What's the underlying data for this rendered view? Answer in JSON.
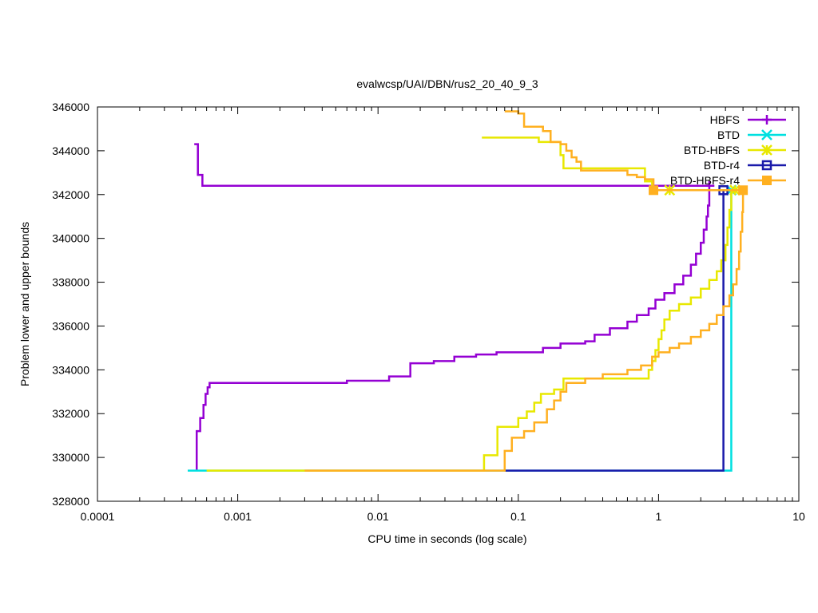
{
  "chart_data": {
    "type": "line",
    "title": "evalwcsp/UAI/DBN/rus2_20_40_9_3",
    "xlabel": "CPU time in seconds (log scale)",
    "ylabel": "Problem lower and upper bounds",
    "x_scale": "log",
    "xlim": [
      0.0001,
      10
    ],
    "ylim": [
      328000,
      346000
    ],
    "x_ticks": [
      0.0001,
      0.001,
      0.01,
      0.1,
      1,
      10
    ],
    "x_tick_labels": [
      "0.0001",
      "0.001",
      "0.01",
      "0.1",
      "1",
      "10"
    ],
    "y_ticks": [
      328000,
      330000,
      332000,
      334000,
      336000,
      338000,
      340000,
      342000,
      344000,
      346000
    ],
    "y_tick_labels": [
      "328000",
      "330000",
      "332000",
      "334000",
      "336000",
      "338000",
      "340000",
      "342000",
      "344000",
      "346000"
    ],
    "grid": false,
    "legend_position": "top-right",
    "series": [
      {
        "name": "HBFS",
        "color": "#9400d3",
        "marker": "plus",
        "upper": [
          [
            0.00049,
            344300
          ],
          [
            0.00052,
            344300
          ],
          [
            0.00052,
            342900
          ],
          [
            0.00056,
            342900
          ],
          [
            0.00056,
            342400
          ],
          [
            0.7,
            342400
          ],
          [
            2.3,
            342400
          ],
          [
            2.5,
            342400
          ]
        ],
        "lower": [
          [
            0.00051,
            329400
          ],
          [
            0.00051,
            331200
          ],
          [
            0.00054,
            331200
          ],
          [
            0.00054,
            331800
          ],
          [
            0.00057,
            331800
          ],
          [
            0.00057,
            332400
          ],
          [
            0.00059,
            332400
          ],
          [
            0.00059,
            332900
          ],
          [
            0.00061,
            332900
          ],
          [
            0.00061,
            333200
          ],
          [
            0.00063,
            333200
          ],
          [
            0.00063,
            333400
          ],
          [
            0.006,
            333400
          ],
          [
            0.006,
            333500
          ],
          [
            0.012,
            333500
          ],
          [
            0.012,
            333700
          ],
          [
            0.017,
            333700
          ],
          [
            0.017,
            334300
          ],
          [
            0.025,
            334300
          ],
          [
            0.025,
            334400
          ],
          [
            0.035,
            334400
          ],
          [
            0.035,
            334600
          ],
          [
            0.05,
            334600
          ],
          [
            0.05,
            334700
          ],
          [
            0.07,
            334700
          ],
          [
            0.07,
            334800
          ],
          [
            0.15,
            334800
          ],
          [
            0.15,
            335000
          ],
          [
            0.2,
            335000
          ],
          [
            0.2,
            335200
          ],
          [
            0.3,
            335200
          ],
          [
            0.3,
            335300
          ],
          [
            0.35,
            335300
          ],
          [
            0.35,
            335600
          ],
          [
            0.45,
            335600
          ],
          [
            0.45,
            335900
          ],
          [
            0.6,
            335900
          ],
          [
            0.6,
            336200
          ],
          [
            0.7,
            336200
          ],
          [
            0.7,
            336500
          ],
          [
            0.85,
            336500
          ],
          [
            0.85,
            336800
          ],
          [
            0.95,
            336800
          ],
          [
            0.95,
            337200
          ],
          [
            1.1,
            337200
          ],
          [
            1.1,
            337500
          ],
          [
            1.3,
            337500
          ],
          [
            1.3,
            337900
          ],
          [
            1.5,
            337900
          ],
          [
            1.5,
            338300
          ],
          [
            1.7,
            338300
          ],
          [
            1.7,
            338800
          ],
          [
            1.85,
            338800
          ],
          [
            1.85,
            339300
          ],
          [
            2.0,
            339300
          ],
          [
            2.0,
            339800
          ],
          [
            2.1,
            339800
          ],
          [
            2.1,
            340400
          ],
          [
            2.2,
            340400
          ],
          [
            2.2,
            341000
          ],
          [
            2.25,
            341000
          ],
          [
            2.25,
            341500
          ],
          [
            2.3,
            341500
          ],
          [
            2.3,
            342200
          ]
        ],
        "markers": [
          [
            2.3,
            342400
          ]
        ]
      },
      {
        "name": "BTD",
        "color": "#00e0e0",
        "marker": "x",
        "upper": [
          [
            3.1,
            342200
          ],
          [
            3.3,
            342200
          ]
        ],
        "lower": [
          [
            0.00044,
            329400
          ],
          [
            3.3,
            329400
          ],
          [
            3.3,
            342200
          ]
        ],
        "markers": [
          [
            3.3,
            342200
          ]
        ]
      },
      {
        "name": "BTD-HBFS",
        "color": "#e8e800",
        "marker": "star",
        "upper": [
          [
            0.055,
            344600
          ],
          [
            0.14,
            344600
          ],
          [
            0.14,
            344400
          ],
          [
            0.2,
            344400
          ],
          [
            0.2,
            343800
          ],
          [
            0.21,
            343800
          ],
          [
            0.21,
            343200
          ],
          [
            0.8,
            343200
          ],
          [
            0.8,
            342600
          ],
          [
            0.9,
            342600
          ],
          [
            0.9,
            342200
          ],
          [
            3.5,
            342200
          ]
        ],
        "lower": [
          [
            0.0006,
            329400
          ],
          [
            0.057,
            329400
          ],
          [
            0.057,
            330100
          ],
          [
            0.071,
            330100
          ],
          [
            0.071,
            331400
          ],
          [
            0.1,
            331400
          ],
          [
            0.1,
            331800
          ],
          [
            0.115,
            331800
          ],
          [
            0.115,
            332100
          ],
          [
            0.13,
            332100
          ],
          [
            0.13,
            332500
          ],
          [
            0.145,
            332500
          ],
          [
            0.145,
            332900
          ],
          [
            0.18,
            332900
          ],
          [
            0.18,
            333100
          ],
          [
            0.21,
            333100
          ],
          [
            0.21,
            333600
          ],
          [
            0.85,
            333600
          ],
          [
            0.85,
            334000
          ],
          [
            0.9,
            334000
          ],
          [
            0.9,
            334400
          ],
          [
            0.95,
            334400
          ],
          [
            0.95,
            334900
          ],
          [
            1.0,
            334900
          ],
          [
            1.0,
            335400
          ],
          [
            1.05,
            335400
          ],
          [
            1.05,
            335800
          ],
          [
            1.1,
            335800
          ],
          [
            1.1,
            336300
          ],
          [
            1.2,
            336300
          ],
          [
            1.2,
            336700
          ],
          [
            1.4,
            336700
          ],
          [
            1.4,
            337000
          ],
          [
            1.7,
            337000
          ],
          [
            1.7,
            337300
          ],
          [
            2.0,
            337300
          ],
          [
            2.0,
            337700
          ],
          [
            2.3,
            337700
          ],
          [
            2.3,
            338100
          ],
          [
            2.6,
            338100
          ],
          [
            2.6,
            338500
          ],
          [
            2.8,
            338500
          ],
          [
            2.8,
            339000
          ],
          [
            3.0,
            339000
          ],
          [
            3.0,
            339700
          ],
          [
            3.1,
            339700
          ],
          [
            3.1,
            340500
          ],
          [
            3.2,
            340500
          ],
          [
            3.2,
            341300
          ],
          [
            3.3,
            341300
          ],
          [
            3.3,
            342200
          ]
        ],
        "markers": [
          [
            1.2,
            342200
          ],
          [
            3.5,
            342200
          ]
        ]
      },
      {
        "name": "BTD-r4",
        "color": "#1a1aaa",
        "marker": "square-open",
        "upper": [
          [
            2.8,
            342200
          ],
          [
            3.1,
            342200
          ]
        ],
        "lower": [
          [
            0.08,
            329400
          ],
          [
            2.9,
            329400
          ],
          [
            2.9,
            342200
          ]
        ],
        "markers": [
          [
            2.9,
            342200
          ]
        ]
      },
      {
        "name": "BTD-HBFS-r4",
        "color": "#ffb020",
        "marker": "square-filled",
        "upper": [
          [
            0.08,
            345800
          ],
          [
            0.1,
            345800
          ],
          [
            0.1,
            345700
          ],
          [
            0.11,
            345700
          ],
          [
            0.11,
            345100
          ],
          [
            0.15,
            345100
          ],
          [
            0.15,
            344900
          ],
          [
            0.17,
            344900
          ],
          [
            0.17,
            344400
          ],
          [
            0.2,
            344400
          ],
          [
            0.2,
            344300
          ],
          [
            0.22,
            344300
          ],
          [
            0.22,
            344000
          ],
          [
            0.24,
            344000
          ],
          [
            0.24,
            343700
          ],
          [
            0.26,
            343700
          ],
          [
            0.26,
            343500
          ],
          [
            0.28,
            343500
          ],
          [
            0.28,
            343100
          ],
          [
            0.6,
            343100
          ],
          [
            0.6,
            342900
          ],
          [
            0.7,
            342900
          ],
          [
            0.7,
            342800
          ],
          [
            0.8,
            342800
          ],
          [
            0.8,
            342700
          ],
          [
            0.92,
            342700
          ],
          [
            0.92,
            342200
          ],
          [
            4.0,
            342200
          ]
        ],
        "lower": [
          [
            0.003,
            329400
          ],
          [
            0.08,
            329400
          ],
          [
            0.08,
            330300
          ],
          [
            0.09,
            330300
          ],
          [
            0.09,
            330900
          ],
          [
            0.11,
            330900
          ],
          [
            0.11,
            331200
          ],
          [
            0.13,
            331200
          ],
          [
            0.13,
            331600
          ],
          [
            0.16,
            331600
          ],
          [
            0.16,
            332200
          ],
          [
            0.18,
            332200
          ],
          [
            0.18,
            332600
          ],
          [
            0.2,
            332600
          ],
          [
            0.2,
            333000
          ],
          [
            0.22,
            333000
          ],
          [
            0.22,
            333400
          ],
          [
            0.3,
            333400
          ],
          [
            0.3,
            333600
          ],
          [
            0.4,
            333600
          ],
          [
            0.4,
            333800
          ],
          [
            0.6,
            333800
          ],
          [
            0.6,
            334000
          ],
          [
            0.75,
            334000
          ],
          [
            0.75,
            334200
          ],
          [
            0.9,
            334200
          ],
          [
            0.9,
            334600
          ],
          [
            1.0,
            334600
          ],
          [
            1.0,
            334800
          ],
          [
            1.2,
            334800
          ],
          [
            1.2,
            335000
          ],
          [
            1.4,
            335000
          ],
          [
            1.4,
            335200
          ],
          [
            1.7,
            335200
          ],
          [
            1.7,
            335500
          ],
          [
            2.0,
            335500
          ],
          [
            2.0,
            335800
          ],
          [
            2.3,
            335800
          ],
          [
            2.3,
            336100
          ],
          [
            2.6,
            336100
          ],
          [
            2.6,
            336500
          ],
          [
            2.9,
            336500
          ],
          [
            2.9,
            336900
          ],
          [
            3.2,
            336900
          ],
          [
            3.2,
            337400
          ],
          [
            3.4,
            337400
          ],
          [
            3.4,
            337900
          ],
          [
            3.6,
            337900
          ],
          [
            3.6,
            338600
          ],
          [
            3.75,
            338600
          ],
          [
            3.75,
            339400
          ],
          [
            3.85,
            339400
          ],
          [
            3.85,
            340300
          ],
          [
            3.95,
            340300
          ],
          [
            3.95,
            341200
          ],
          [
            4.0,
            341200
          ],
          [
            4.0,
            342200
          ]
        ],
        "markers": [
          [
            0.92,
            342200
          ],
          [
            4.0,
            342200
          ]
        ]
      }
    ]
  }
}
